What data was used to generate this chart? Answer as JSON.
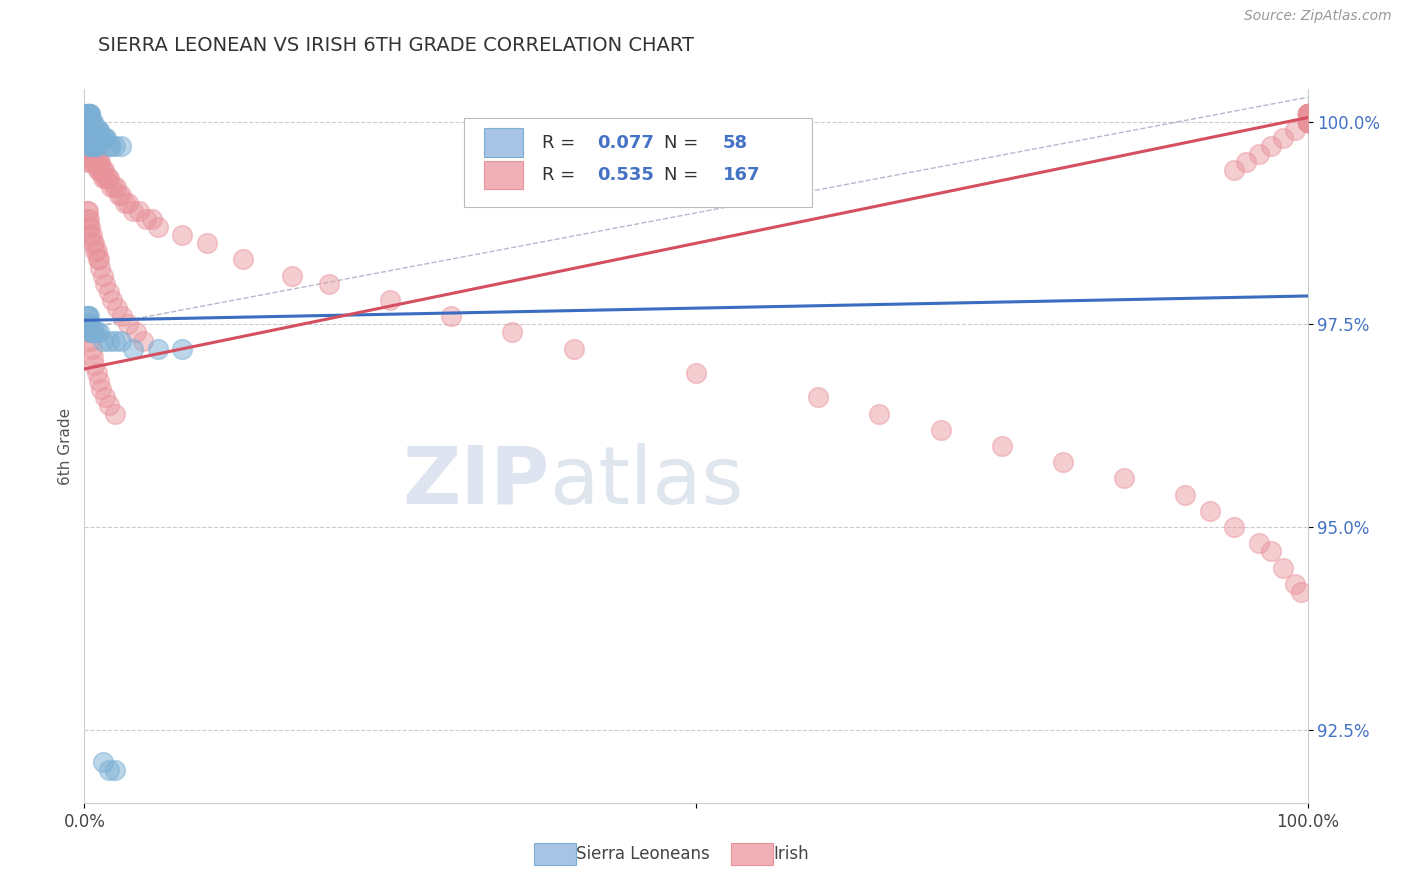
{
  "title": "SIERRA LEONEAN VS IRISH 6TH GRADE CORRELATION CHART",
  "source": "Source: ZipAtlas.com",
  "ylabel": "6th Grade",
  "xlim": [
    0.0,
    1.0
  ],
  "ylim": [
    0.916,
    1.004
  ],
  "yticks": [
    0.925,
    0.95,
    0.975,
    1.0
  ],
  "ytick_labels": [
    "92.5%",
    "95.0%",
    "97.5%",
    "100.0%"
  ],
  "blue_color": "#7bafd4",
  "pink_color": "#e8929a",
  "blue_line_color": "#3a6cbf",
  "pink_line_color": "#d45060",
  "dashed_line_color": "#9999bb",
  "legend_R_blue": "0.077",
  "legend_N_blue": "58",
  "legend_R_pink": "0.535",
  "legend_N_pink": "167",
  "watermark_zip": "ZIP",
  "watermark_atlas": "atlas",
  "blue_trend": [
    0.0,
    1.0,
    0.9755,
    0.9785
  ],
  "pink_trend": [
    0.0,
    1.0,
    0.9695,
    1.0005
  ],
  "dash_line": [
    0.0,
    1.0,
    0.9745,
    1.003
  ],
  "blue_scatter_x": [
    0.002,
    0.002,
    0.003,
    0.003,
    0.004,
    0.004,
    0.005,
    0.005,
    0.005,
    0.006,
    0.006,
    0.007,
    0.007,
    0.008,
    0.009,
    0.01,
    0.011,
    0.012,
    0.013,
    0.014,
    0.015,
    0.017,
    0.018,
    0.02,
    0.022,
    0.025,
    0.03,
    0.004,
    0.004,
    0.005,
    0.005,
    0.006,
    0.007,
    0.008,
    0.009,
    0.01,
    0.002,
    0.003,
    0.004,
    0.004,
    0.005,
    0.005,
    0.006,
    0.007,
    0.008,
    0.01,
    0.012,
    0.015,
    0.02,
    0.025,
    0.03,
    0.04,
    0.06,
    0.08,
    0.015,
    0.02,
    0.025
  ],
  "blue_scatter_y": [
    1.001,
    1.001,
    1.001,
    1.001,
    1.001,
    1.001,
    1.001,
    1.001,
    1.0,
    1.0,
    1.0,
    1.0,
    0.999,
    0.999,
    0.999,
    0.999,
    0.999,
    0.999,
    0.998,
    0.998,
    0.998,
    0.998,
    0.998,
    0.997,
    0.997,
    0.997,
    0.997,
    0.998,
    0.998,
    0.997,
    0.997,
    0.997,
    0.997,
    0.997,
    0.997,
    0.997,
    0.976,
    0.976,
    0.976,
    0.975,
    0.975,
    0.974,
    0.974,
    0.974,
    0.974,
    0.974,
    0.974,
    0.973,
    0.973,
    0.973,
    0.973,
    0.972,
    0.972,
    0.972,
    0.921,
    0.92,
    0.92
  ],
  "pink_scatter_x": [
    0.001,
    0.001,
    0.001,
    0.002,
    0.002,
    0.002,
    0.002,
    0.003,
    0.003,
    0.003,
    0.003,
    0.004,
    0.004,
    0.004,
    0.005,
    0.005,
    0.005,
    0.006,
    0.006,
    0.007,
    0.007,
    0.008,
    0.008,
    0.009,
    0.009,
    0.01,
    0.01,
    0.011,
    0.011,
    0.012,
    0.012,
    0.013,
    0.013,
    0.014,
    0.015,
    0.015,
    0.016,
    0.017,
    0.018,
    0.019,
    0.02,
    0.022,
    0.024,
    0.026,
    0.028,
    0.03,
    0.033,
    0.036,
    0.04,
    0.045,
    0.05,
    0.055,
    0.06,
    0.002,
    0.003,
    0.003,
    0.004,
    0.004,
    0.005,
    0.005,
    0.006,
    0.007,
    0.008,
    0.009,
    0.01,
    0.011,
    0.012,
    0.013,
    0.015,
    0.017,
    0.02,
    0.023,
    0.027,
    0.031,
    0.036,
    0.042,
    0.048,
    0.003,
    0.004,
    0.005,
    0.006,
    0.007,
    0.008,
    0.01,
    0.012,
    0.014,
    0.017,
    0.02,
    0.025,
    0.08,
    0.1,
    0.13,
    0.17,
    0.2,
    0.25,
    0.3,
    0.35,
    0.4,
    0.5,
    0.6,
    0.65,
    0.7,
    0.75,
    0.8,
    0.85,
    0.9,
    0.92,
    0.94,
    0.96,
    0.97,
    0.98,
    0.99,
    0.995,
    1.0,
    1.0,
    1.0,
    1.0,
    1.0,
    1.0,
    1.0,
    1.0,
    1.0,
    1.0,
    1.0,
    1.0,
    1.0,
    1.0,
    1.0,
    1.0,
    1.0,
    1.0,
    1.0,
    1.0,
    1.0,
    1.0,
    1.0,
    1.0,
    1.0,
    1.0,
    1.0,
    1.0,
    1.0,
    1.0,
    1.0,
    1.0,
    1.0,
    1.0,
    1.0,
    1.0,
    1.0,
    1.0,
    1.0,
    1.0,
    1.0,
    0.99,
    0.98,
    0.97,
    0.96,
    0.95,
    0.94
  ],
  "pink_scatter_y": [
    0.998,
    0.997,
    0.996,
    0.999,
    0.998,
    0.997,
    0.996,
    0.998,
    0.997,
    0.996,
    0.995,
    0.998,
    0.997,
    0.996,
    0.997,
    0.996,
    0.995,
    0.997,
    0.996,
    0.996,
    0.995,
    0.996,
    0.995,
    0.996,
    0.995,
    0.996,
    0.995,
    0.995,
    0.994,
    0.995,
    0.994,
    0.995,
    0.994,
    0.994,
    0.994,
    0.993,
    0.994,
    0.993,
    0.993,
    0.993,
    0.993,
    0.992,
    0.992,
    0.992,
    0.991,
    0.991,
    0.99,
    0.99,
    0.989,
    0.989,
    0.988,
    0.988,
    0.987,
    0.989,
    0.989,
    0.988,
    0.988,
    0.987,
    0.987,
    0.986,
    0.986,
    0.985,
    0.985,
    0.984,
    0.984,
    0.983,
    0.983,
    0.982,
    0.981,
    0.98,
    0.979,
    0.978,
    0.977,
    0.976,
    0.975,
    0.974,
    0.973,
    0.975,
    0.974,
    0.973,
    0.972,
    0.971,
    0.97,
    0.969,
    0.968,
    0.967,
    0.966,
    0.965,
    0.964,
    0.986,
    0.985,
    0.983,
    0.981,
    0.98,
    0.978,
    0.976,
    0.974,
    0.972,
    0.969,
    0.966,
    0.964,
    0.962,
    0.96,
    0.958,
    0.956,
    0.954,
    0.952,
    0.95,
    0.948,
    0.947,
    0.945,
    0.943,
    0.942,
    1.001,
    1.001,
    1.001,
    1.001,
    1.001,
    1.001,
    1.001,
    1.001,
    1.001,
    1.001,
    1.001,
    1.001,
    1.001,
    1.001,
    1.0,
    1.0,
    1.0,
    1.0,
    1.0,
    1.0,
    1.0,
    1.0,
    1.0,
    1.0,
    1.0,
    1.0,
    1.0,
    1.0,
    1.0,
    1.0,
    1.0,
    1.0,
    1.0,
    1.0,
    1.0,
    1.0,
    1.0,
    1.0,
    1.0,
    1.0,
    1.0,
    0.999,
    0.998,
    0.997,
    0.996,
    0.995,
    0.994
  ]
}
